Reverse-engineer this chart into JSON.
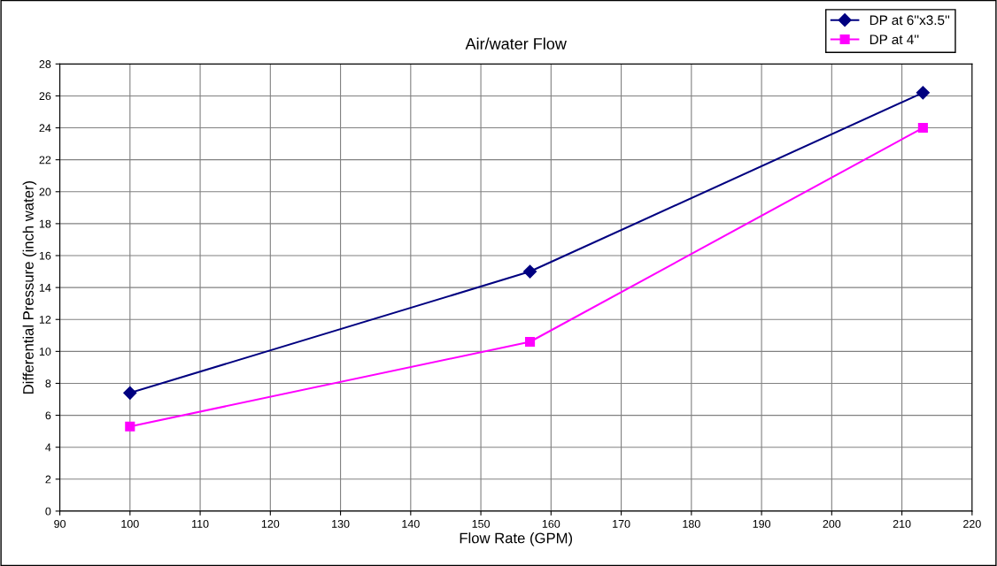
{
  "chart_data": {
    "type": "line",
    "title": "Air/water Flow",
    "xlabel": "Flow Rate (GPM)",
    "ylabel": "Differential Pressure (inch water)",
    "x": [
      100,
      157,
      213
    ],
    "series": [
      {
        "name": "DP at 6''x3.5''",
        "color": "#000080",
        "marker": "diamond",
        "values": [
          7.4,
          15.0,
          26.2
        ]
      },
      {
        "name": "DP at 4''",
        "color": "#ff00ff",
        "marker": "square",
        "values": [
          5.3,
          10.6,
          24.0
        ]
      }
    ],
    "xlim": [
      90,
      220
    ],
    "xticks": [
      90,
      100,
      110,
      120,
      130,
      140,
      150,
      160,
      170,
      180,
      190,
      200,
      210,
      220
    ],
    "ylim": [
      0,
      28
    ],
    "yticks": [
      0,
      2,
      4,
      6,
      8,
      10,
      12,
      14,
      16,
      18,
      20,
      22,
      24,
      26,
      28
    ],
    "grid": true,
    "legend": "top right",
    "line_style": "solid"
  }
}
